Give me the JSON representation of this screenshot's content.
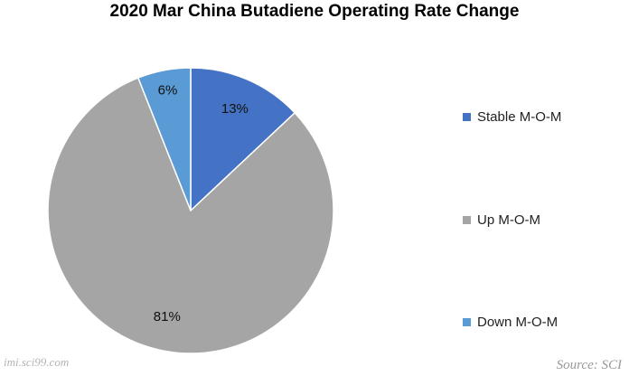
{
  "chart_data": {
    "type": "pie",
    "title": "2020 Mar China Butadiene Operating Rate Change",
    "slices": [
      {
        "name": "Stable M-O-M",
        "value": 13,
        "label": "13%",
        "color": "#4472c4"
      },
      {
        "name": "Up M-O-M",
        "value": 81,
        "label": "81%",
        "color": "#a5a5a5"
      },
      {
        "name": "Down M-O-M",
        "value": 6,
        "label": "6%",
        "color": "#5b9bd5"
      }
    ],
    "legend_placement": "right"
  },
  "watermark": "imi.sci99.com",
  "source": "Source: SCI"
}
